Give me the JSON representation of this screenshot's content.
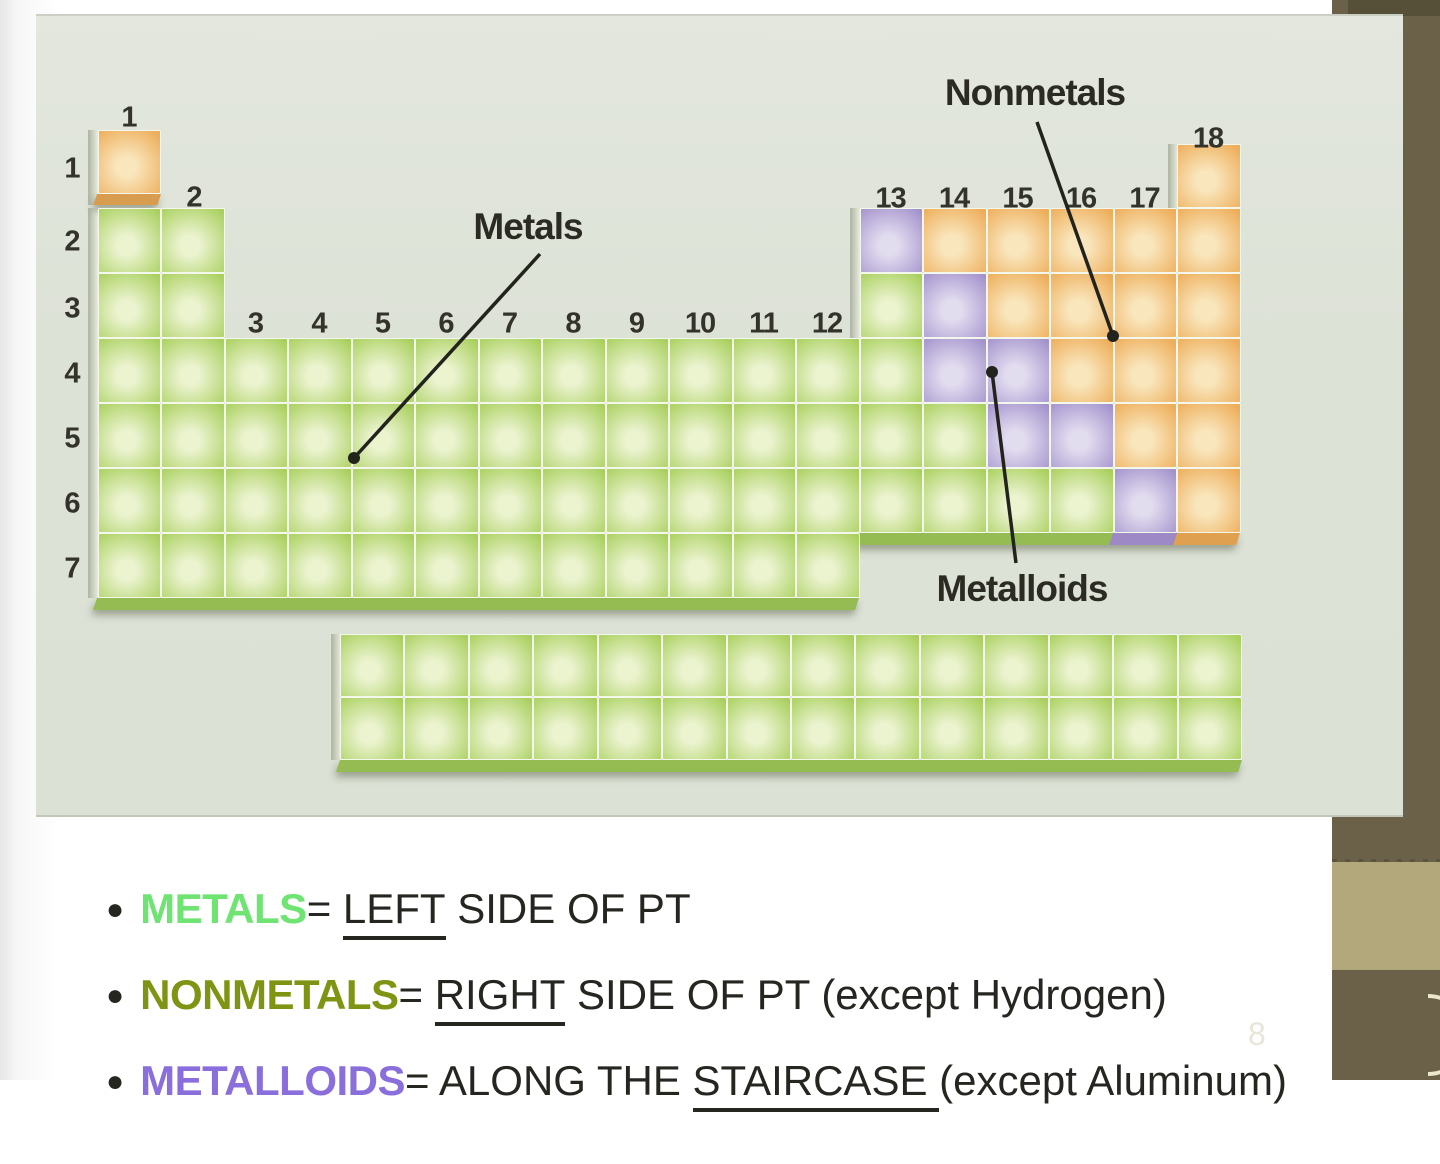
{
  "slide": {
    "page_number": "8"
  },
  "diagram": {
    "labels": {
      "metals": "Metals",
      "nonmetals": "Nonmetals",
      "metalloids": "Metalloids"
    },
    "group_labels": [
      "1",
      "2",
      "3",
      "4",
      "5",
      "6",
      "7",
      "8",
      "9",
      "10",
      "11",
      "12",
      "13",
      "14",
      "15",
      "16",
      "17",
      "18"
    ],
    "period_labels": [
      "1",
      "2",
      "3",
      "4",
      "5",
      "6",
      "7"
    ]
  },
  "ptable": {
    "main_grid": [
      "O................O",
      "GG..........POOOOO",
      "GG..........GPOOOO",
      "GGGGGGGGGGGGGPPOOO",
      "GGGGGGGGGGGGGGPPOO",
      "GGGGGGGGGGGGGGGGPO",
      "GGGGGGGGGGGG......"
    ],
    "f_block": [
      "GGGGGGGGGGGGGG",
      "GGGGGGGGGGGGGG"
    ]
  },
  "colors": {
    "metal_green_edge": "#a6ce58",
    "metal_green_light": "#ebf3cf",
    "nonmetal_orange_edge": "#edaa54",
    "nonmetal_orange_light": "#f9e6bc",
    "metalloid_purple_edge": "#a08fcb",
    "metalloid_purple_light": "#e2dcef",
    "figure_background": "#dfe3d9",
    "sidebar_brown": "#6b6148",
    "sidebar_khaki": "#b2a87c",
    "metals_term": "#6fe473",
    "nonmetals_term": "#7f9413",
    "metalloids_term": "#8a6fdc",
    "body_text": "#262621"
  },
  "bullets": [
    {
      "term": "METALS",
      "term_color": "#6fe473",
      "eq": "= ",
      "mid": "",
      "underlined": "LEFT",
      "rest": " SIDE OF PT"
    },
    {
      "term": "NONMETALS",
      "term_color": "#7f9413",
      "eq": "= ",
      "mid": "",
      "underlined": "RIGHT",
      "rest": " SIDE OF PT (except Hydrogen)"
    },
    {
      "term": "METALLOIDS",
      "term_color": "#8a6fdc",
      "eq": "= ",
      "mid": "ALONG THE ",
      "underlined": "STAIRCASE ",
      "rest": "(except Aluminum)"
    }
  ]
}
